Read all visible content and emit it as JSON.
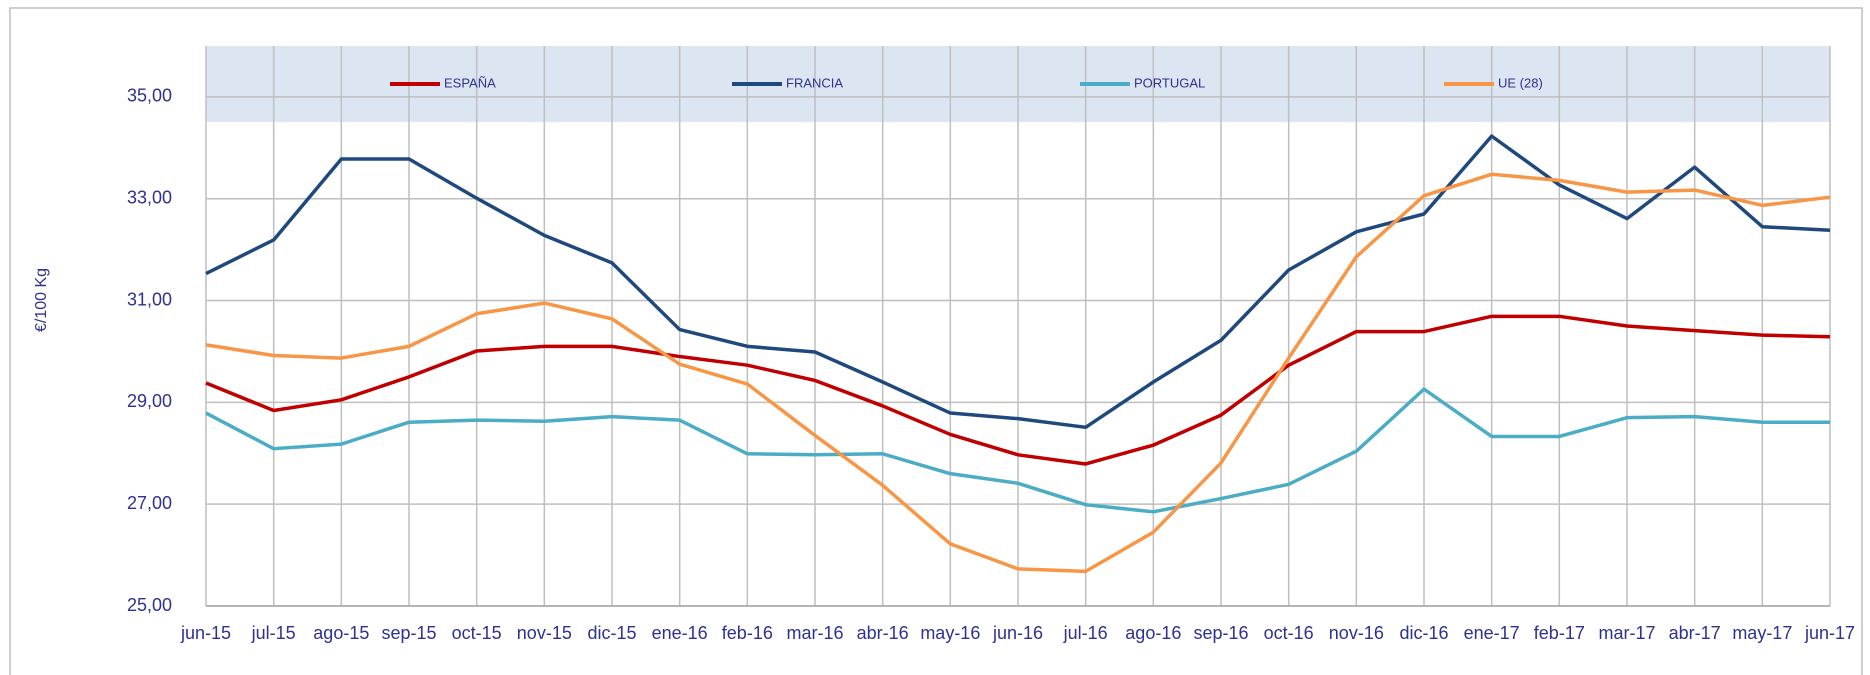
{
  "chart_data": {
    "type": "line",
    "y_label": "€/100 Kg",
    "categories": [
      "jun-15",
      "jul-15",
      "ago-15",
      "sep-15",
      "oct-15",
      "nov-15",
      "dic-15",
      "ene-16",
      "feb-16",
      "mar-16",
      "abr-16",
      "may-16",
      "jun-16",
      "jul-16",
      "ago-16",
      "sep-16",
      "oct-16",
      "nov-16",
      "dic-16",
      "ene-17",
      "feb-17",
      "mar-17",
      "abr-17",
      "may-17",
      "jun-17"
    ],
    "series": [
      {
        "name": "ESPAÑA",
        "color": "#c00000",
        "values": [
          29.38,
          28.84,
          29.05,
          29.5,
          30.01,
          30.1,
          30.1,
          29.9,
          29.73,
          29.43,
          28.93,
          28.37,
          27.97,
          27.79,
          28.16,
          28.75,
          29.73,
          30.39,
          30.39,
          30.69,
          30.69,
          30.5,
          30.41,
          30.32,
          30.29
        ]
      },
      {
        "name": "FRANCIA",
        "color": "#1f497d",
        "values": [
          31.53,
          32.19,
          33.78,
          33.78,
          33.01,
          32.28,
          31.74,
          30.43,
          30.1,
          29.99,
          29.4,
          28.79,
          28.68,
          28.51,
          29.4,
          30.22,
          31.6,
          32.35,
          32.7,
          34.23,
          33.27,
          32.61,
          33.62,
          32.45,
          32.38
        ]
      },
      {
        "name": "PORTUGAL",
        "color": "#4bacc6",
        "values": [
          28.79,
          28.09,
          28.18,
          28.61,
          28.65,
          28.63,
          28.72,
          28.65,
          27.99,
          27.97,
          27.99,
          27.6,
          27.41,
          26.99,
          26.85,
          27.11,
          27.39,
          28.04,
          29.26,
          28.33,
          28.33,
          28.7,
          28.72,
          28.61,
          28.61
        ]
      },
      {
        "name": "UE (28)",
        "color": "#f79646",
        "values": [
          30.13,
          29.92,
          29.87,
          30.1,
          30.74,
          30.95,
          30.64,
          29.75,
          29.36,
          28.35,
          27.37,
          26.22,
          25.73,
          25.68,
          26.45,
          27.81,
          29.87,
          31.86,
          33.06,
          33.48,
          33.36,
          33.13,
          33.17,
          32.87,
          33.03
        ]
      }
    ],
    "ylim": [
      25,
      36
    ],
    "yticks": [
      {
        "value": 25,
        "label": "25,00"
      },
      {
        "value": 27,
        "label": "27,00"
      },
      {
        "value": 29,
        "label": "29,00"
      },
      {
        "value": 31,
        "label": "31,00"
      },
      {
        "value": 33,
        "label": "33,00"
      },
      {
        "value": 35,
        "label": "35,00"
      }
    ],
    "grid": true
  }
}
